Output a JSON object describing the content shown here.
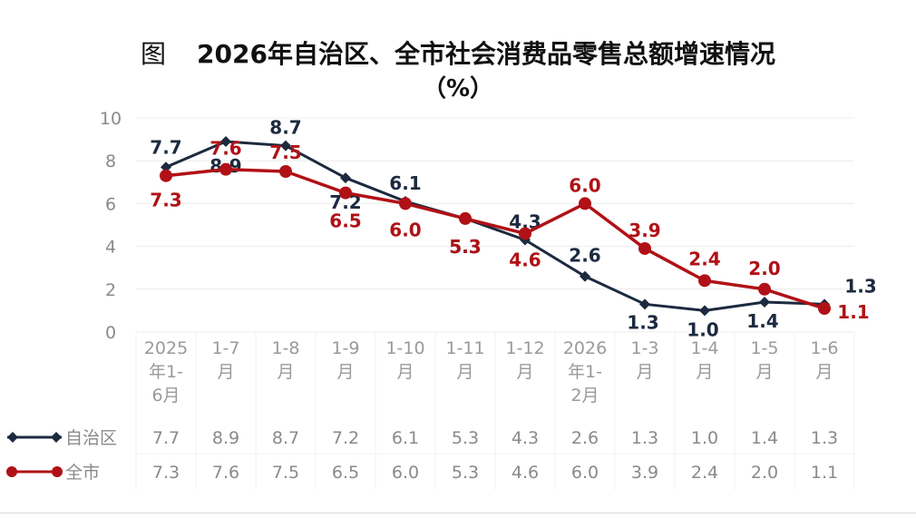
{
  "title": {
    "prefix": "图",
    "text": "2026年自治区、全市社会消费品零售总额增速情况",
    "unit": "（%）"
  },
  "chart_data": {
    "type": "line",
    "categories": [
      "2025年1-6月",
      "1-7月",
      "1-8月",
      "1-9月",
      "1-10月",
      "1-11月",
      "1-12月",
      "2026年1-2月",
      "1-3月",
      "1-4月",
      "1-5月",
      "1-6月"
    ],
    "category_lines": [
      [
        "2025",
        "年1-",
        "6月"
      ],
      [
        "1-7",
        "月"
      ],
      [
        "1-8",
        "月"
      ],
      [
        "1-9",
        "月"
      ],
      [
        "1-10",
        "月"
      ],
      [
        "1-11",
        "月"
      ],
      [
        "1-12",
        "月"
      ],
      [
        "2026",
        "年1-",
        "2月"
      ],
      [
        "1-3",
        "月"
      ],
      [
        "1-4",
        "月"
      ],
      [
        "1-5",
        "月"
      ],
      [
        "1-6",
        "月"
      ]
    ],
    "series": [
      {
        "name": "自治区",
        "color": "#1c2a3f",
        "marker": "diamond",
        "values": [
          7.7,
          8.9,
          8.7,
          7.2,
          6.1,
          5.3,
          4.3,
          2.6,
          1.3,
          1.0,
          1.4,
          1.3
        ]
      },
      {
        "name": "全市",
        "color": "#b01116",
        "marker": "circle",
        "values": [
          7.3,
          7.6,
          7.5,
          6.5,
          6.0,
          5.3,
          4.6,
          6.0,
          3.9,
          2.4,
          2.0,
          1.1
        ]
      }
    ],
    "ylim": [
      0,
      10
    ],
    "yticks": [
      0,
      2,
      4,
      6,
      8,
      10
    ],
    "grid": true,
    "legend": "bottom-left data table"
  }
}
